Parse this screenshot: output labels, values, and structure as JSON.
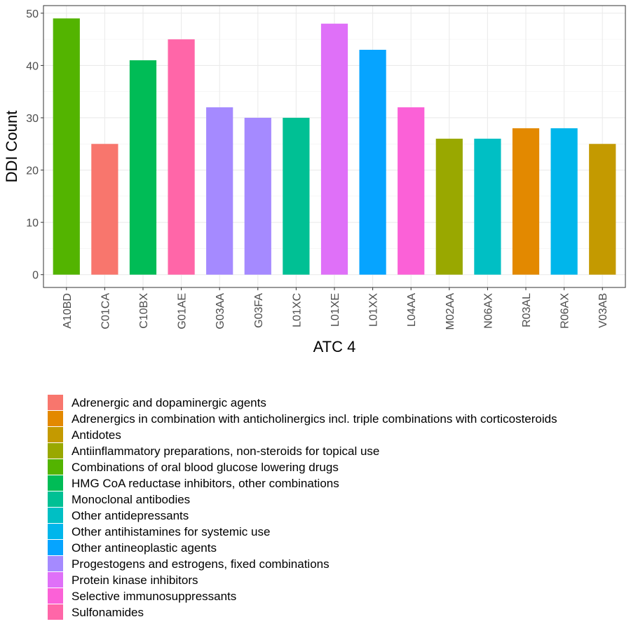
{
  "chart_data": {
    "type": "bar",
    "xlabel": "ATC 4",
    "ylabel": "DDI Count",
    "ylim": [
      0,
      50
    ],
    "y_ticks": [
      0,
      10,
      20,
      30,
      40,
      50
    ],
    "grid": true,
    "legend_position": "bottom",
    "categories": [
      "A10BD",
      "C01CA",
      "C10BX",
      "G01AE",
      "G03AA",
      "G03FA",
      "L01XC",
      "L01XE",
      "L01XX",
      "L04AA",
      "M02AA",
      "N06AX",
      "R03AL",
      "R06AX",
      "V03AB"
    ],
    "values": [
      49,
      25,
      41,
      45,
      32,
      30,
      30,
      48,
      43,
      32,
      26,
      26,
      28,
      28,
      25
    ],
    "bar_groups": [
      "Combinations of oral blood glucose lowering drugs",
      "Adrenergic and dopaminergic agents",
      "HMG CoA reductase inhibitors, other combinations",
      "Sulfonamides",
      "Progestogens and estrogens, fixed combinations",
      "Progestogens and estrogens, fixed combinations",
      "Monoclonal antibodies",
      "Protein kinase inhibitors",
      "Other antineoplastic agents",
      "Selective immunosuppressants",
      "Antiinflammatory preparations, non-steroids for topical use",
      "Other antidepressants",
      "Adrenergics in combination with anticholinergics incl. triple combinations with corticosteroids",
      "Other antihistamines for systemic use",
      "Antidotes"
    ],
    "legend": [
      {
        "label": "Adrenergic and dopaminergic agents",
        "color": "#F8766D"
      },
      {
        "label": "Adrenergics in combination with anticholinergics incl. triple combinations with corticosteroids",
        "color": "#E38900"
      },
      {
        "label": "Antidotes",
        "color": "#C49A00"
      },
      {
        "label": "Antiinflammatory preparations, non-steroids for topical use",
        "color": "#99A800"
      },
      {
        "label": "Combinations of oral blood glucose lowering drugs",
        "color": "#53B400"
      },
      {
        "label": "HMG CoA reductase inhibitors, other combinations",
        "color": "#00BC56"
      },
      {
        "label": "Monoclonal antibodies",
        "color": "#00C094"
      },
      {
        "label": "Other antidepressants",
        "color": "#00BFC4"
      },
      {
        "label": "Other antihistamines for systemic use",
        "color": "#00B6EB"
      },
      {
        "label": "Other antineoplastic agents",
        "color": "#06A4FF"
      },
      {
        "label": "Progestogens and estrogens, fixed combinations",
        "color": "#A58AFF"
      },
      {
        "label": "Protein kinase inhibitors",
        "color": "#DF70F8"
      },
      {
        "label": "Selective immunosuppressants",
        "color": "#FB61D7"
      },
      {
        "label": "Sulfonamides",
        "color": "#FF66A8"
      }
    ]
  }
}
